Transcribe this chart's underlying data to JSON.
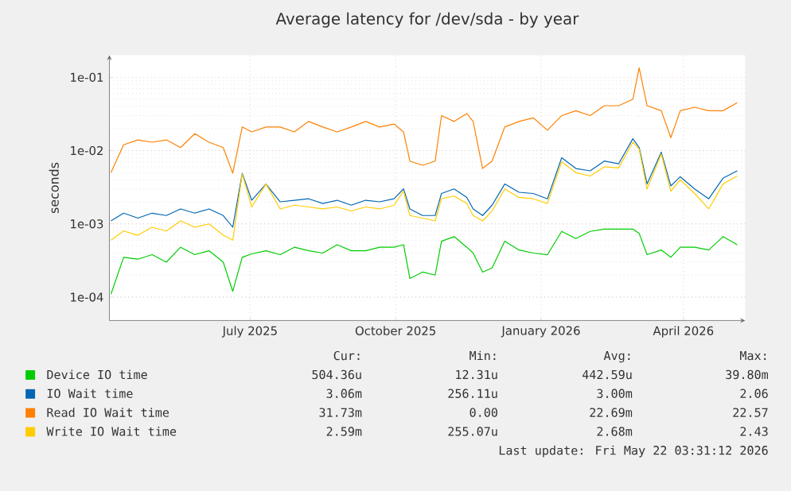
{
  "chart_data": {
    "type": "line",
    "title": "Average latency for /dev/sda - by year",
    "ylabel": "seconds",
    "log": true,
    "grid": true,
    "legend": "bottom",
    "xlim": [
      "2025-04-03",
      "2026-05-10"
    ],
    "ylim": [
      4.8e-05,
      0.2
    ],
    "xticks": [
      {
        "value": "2025-07-01",
        "label": "July 2025"
      },
      {
        "value": "2025-10-01",
        "label": "October 2025"
      },
      {
        "value": "2026-01-01",
        "label": "January 2026"
      },
      {
        "value": "2026-04-01",
        "label": "April 2026"
      }
    ],
    "yticks": [
      {
        "value": 0.0001,
        "label": "1e-04"
      },
      {
        "value": 0.001,
        "label": "1e-03"
      },
      {
        "value": 0.01,
        "label": "1e-02"
      },
      {
        "value": 0.1,
        "label": "1e-01"
      }
    ],
    "x": [
      "2025-04-04",
      "2025-04-12",
      "2025-04-21",
      "2025-04-30",
      "2025-05-09",
      "2025-05-18",
      "2025-05-27",
      "2025-06-05",
      "2025-06-14",
      "2025-06-20",
      "2025-06-26",
      "2025-07-02",
      "2025-07-11",
      "2025-07-20",
      "2025-07-29",
      "2025-08-07",
      "2025-08-16",
      "2025-08-25",
      "2025-09-03",
      "2025-09-12",
      "2025-09-21",
      "2025-09-30",
      "2025-10-06",
      "2025-10-10",
      "2025-10-18",
      "2025-10-26",
      "2025-10-30",
      "2025-11-07",
      "2025-11-15",
      "2025-11-19",
      "2025-11-25",
      "2025-12-01",
      "2025-12-09",
      "2025-12-18",
      "2025-12-27",
      "2026-01-05",
      "2026-01-14",
      "2026-01-23",
      "2026-02-01",
      "2026-02-10",
      "2026-02-19",
      "2026-02-28",
      "2026-03-04",
      "2026-03-09",
      "2026-03-18",
      "2026-03-24",
      "2026-03-30",
      "2026-04-08",
      "2026-04-17",
      "2026-04-26",
      "2026-05-05"
    ],
    "series": [
      {
        "name": "Device IO time",
        "color": "#00cc00",
        "values": [
          0.00011,
          0.00035,
          0.00033,
          0.00038,
          0.0003,
          0.00048,
          0.00038,
          0.00043,
          0.0003,
          0.00012,
          0.00035,
          0.00039,
          0.00043,
          0.00038,
          0.00048,
          0.00043,
          0.0004,
          0.00052,
          0.00043,
          0.00043,
          0.00048,
          0.00048,
          0.00052,
          0.00018,
          0.00022,
          0.0002,
          0.00058,
          0.00067,
          0.00048,
          0.0004,
          0.00022,
          0.00025,
          0.00058,
          0.00044,
          0.0004,
          0.00038,
          0.00079,
          0.00063,
          0.00079,
          0.00085,
          0.00085,
          0.00085,
          0.00074,
          0.00038,
          0.00044,
          0.00035,
          0.00048,
          0.00048,
          0.00044,
          0.00067,
          0.00052
        ]
      },
      {
        "name": "IO Wait time",
        "color": "#0066b3",
        "values": [
          0.0011,
          0.0014,
          0.0012,
          0.0014,
          0.0013,
          0.0016,
          0.0014,
          0.0016,
          0.0013,
          0.0009,
          0.0049,
          0.0021,
          0.0035,
          0.002,
          0.0021,
          0.0022,
          0.0019,
          0.0021,
          0.0018,
          0.0021,
          0.002,
          0.0022,
          0.003,
          0.0016,
          0.0013,
          0.0013,
          0.0026,
          0.003,
          0.0023,
          0.0016,
          0.0013,
          0.0018,
          0.0035,
          0.0027,
          0.0026,
          0.0022,
          0.008,
          0.0057,
          0.0053,
          0.0072,
          0.0066,
          0.0145,
          0.011,
          0.0035,
          0.0095,
          0.0033,
          0.0044,
          0.003,
          0.0022,
          0.0042,
          0.0053
        ]
      },
      {
        "name": "Read IO Wait time",
        "color": "#ff8000",
        "values": [
          0.005,
          0.012,
          0.014,
          0.013,
          0.014,
          0.011,
          0.017,
          0.013,
          0.011,
          0.0049,
          0.021,
          0.018,
          0.021,
          0.021,
          0.018,
          0.025,
          0.021,
          0.018,
          0.021,
          0.025,
          0.021,
          0.023,
          0.018,
          0.0072,
          0.0063,
          0.0072,
          0.03,
          0.025,
          0.032,
          0.025,
          0.0057,
          0.0072,
          0.021,
          0.025,
          0.028,
          0.019,
          0.03,
          0.035,
          0.03,
          0.041,
          0.041,
          0.05,
          0.135,
          0.041,
          0.035,
          0.015,
          0.035,
          0.039,
          0.035,
          0.035,
          0.045
        ]
      },
      {
        "name": "Write IO Wait time",
        "color": "#ffcc00",
        "values": [
          0.0006,
          0.0008,
          0.0007,
          0.0009,
          0.0008,
          0.0011,
          0.0009,
          0.001,
          0.0007,
          0.0006,
          0.0048,
          0.0017,
          0.0035,
          0.0016,
          0.0018,
          0.0017,
          0.0016,
          0.0017,
          0.0015,
          0.0017,
          0.0016,
          0.0018,
          0.0028,
          0.0013,
          0.0012,
          0.0011,
          0.0022,
          0.0024,
          0.0019,
          0.0013,
          0.0011,
          0.0015,
          0.003,
          0.0023,
          0.0022,
          0.0019,
          0.007,
          0.005,
          0.0045,
          0.006,
          0.0058,
          0.013,
          0.0105,
          0.003,
          0.009,
          0.0028,
          0.004,
          0.0026,
          0.0016,
          0.0035,
          0.0045
        ]
      }
    ],
    "annotations": [
      "Cur:",
      "Min:",
      "Avg:",
      "Max:",
      "504.36u",
      "12.31u",
      "442.59u",
      "39.80m",
      "3.06m",
      "256.11u",
      "3.00m",
      "2.06",
      "31.73m",
      "0.00",
      "22.69m",
      "22.57",
      "2.59m",
      "255.07u",
      "2.68m",
      "2.43",
      "Last update: Fri May 22 03:31:12 2026"
    ]
  }
}
